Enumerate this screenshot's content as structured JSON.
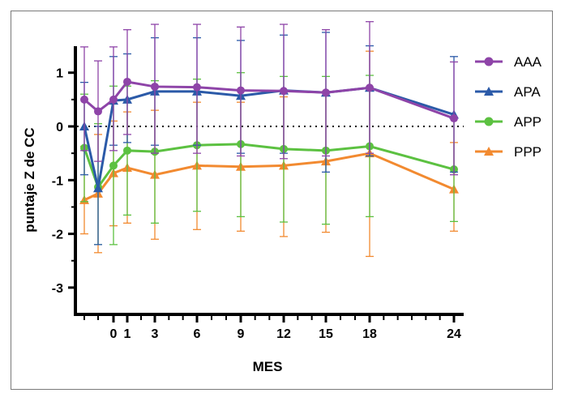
{
  "chart_data": {
    "type": "line",
    "xlabel": "MES",
    "ylabel": "puntaje Z de CC",
    "ylim": [
      -3.5,
      1.5
    ],
    "y_ticks": [
      1,
      0,
      -1,
      -2,
      -3
    ],
    "y_tick_labels": [
      "1",
      "0",
      "-1",
      "-2",
      "-3"
    ],
    "x_ticks": [
      0,
      1,
      3,
      6,
      9,
      12,
      15,
      18,
      24
    ],
    "x_tick_labels": [
      "0",
      "1",
      "3",
      "6",
      "9",
      "12",
      "15",
      "18",
      "24"
    ],
    "x_minor_ticks": [
      -2,
      -1,
      2,
      4,
      5,
      7,
      8,
      10,
      11,
      13,
      14,
      16,
      17,
      19,
      20,
      21,
      22,
      23
    ],
    "x": [
      -2,
      -1,
      0,
      1,
      3,
      6,
      9,
      12,
      15,
      18,
      24
    ],
    "reference_line": {
      "y": 0,
      "style": "dotted"
    },
    "legend_position": "right",
    "series": [
      {
        "name": "AAA",
        "color": "#8e44a8",
        "marker": "circle",
        "values": [
          0.5,
          0.28,
          0.5,
          0.83,
          0.74,
          0.73,
          0.67,
          0.66,
          0.63,
          0.72,
          0.15
        ],
        "err_low": [
          -0.45,
          -0.65,
          -0.45,
          -0.15,
          -0.5,
          -0.5,
          -0.55,
          -0.6,
          -0.55,
          -0.5,
          -0.9
        ],
        "err_high": [
          1.48,
          1.22,
          1.48,
          1.8,
          1.9,
          1.9,
          1.85,
          1.9,
          1.8,
          1.95,
          1.2
        ]
      },
      {
        "name": "APA",
        "color": "#2b5aa8",
        "marker": "triangle",
        "values": [
          0.0,
          -1.15,
          0.48,
          0.5,
          0.65,
          0.65,
          0.57,
          0.67,
          0.63,
          0.72,
          0.22
        ],
        "err_low": [
          -0.9,
          -2.2,
          -0.35,
          -0.3,
          -0.35,
          -0.35,
          -0.5,
          -0.5,
          -0.85,
          -0.55,
          -0.85
        ],
        "err_high": [
          0.82,
          0.0,
          1.3,
          1.35,
          1.65,
          1.65,
          1.6,
          1.7,
          1.75,
          1.5,
          1.3
        ]
      },
      {
        "name": "APP",
        "color": "#5cc141",
        "marker": "circle",
        "values": [
          -0.4,
          -1.13,
          -0.73,
          -0.45,
          -0.47,
          -0.35,
          -0.33,
          -0.42,
          -0.45,
          -0.37,
          -0.8
        ],
        "err_low": [
          -1.4,
          -2.2,
          -2.2,
          -1.65,
          -1.8,
          -1.58,
          -1.68,
          -1.78,
          -1.82,
          -1.68,
          -1.77
        ],
        "err_high": [
          0.6,
          0.05,
          0.75,
          0.75,
          0.85,
          0.88,
          1.0,
          0.93,
          0.93,
          0.95,
          0.17
        ]
      },
      {
        "name": "PPP",
        "color": "#f28a30",
        "marker": "triangle",
        "values": [
          -1.37,
          -1.25,
          -0.87,
          -0.77,
          -0.9,
          -0.73,
          -0.75,
          -0.73,
          -0.65,
          -0.5,
          -1.17
        ],
        "err_low": [
          -2.0,
          -2.35,
          -1.85,
          -1.8,
          -2.1,
          -1.92,
          -1.95,
          -2.05,
          -1.97,
          -2.42,
          -1.95
        ],
        "err_high": [
          -0.37,
          -0.15,
          0.1,
          0.27,
          0.3,
          0.45,
          0.45,
          0.55,
          0.65,
          1.4,
          -0.3
        ]
      }
    ]
  }
}
